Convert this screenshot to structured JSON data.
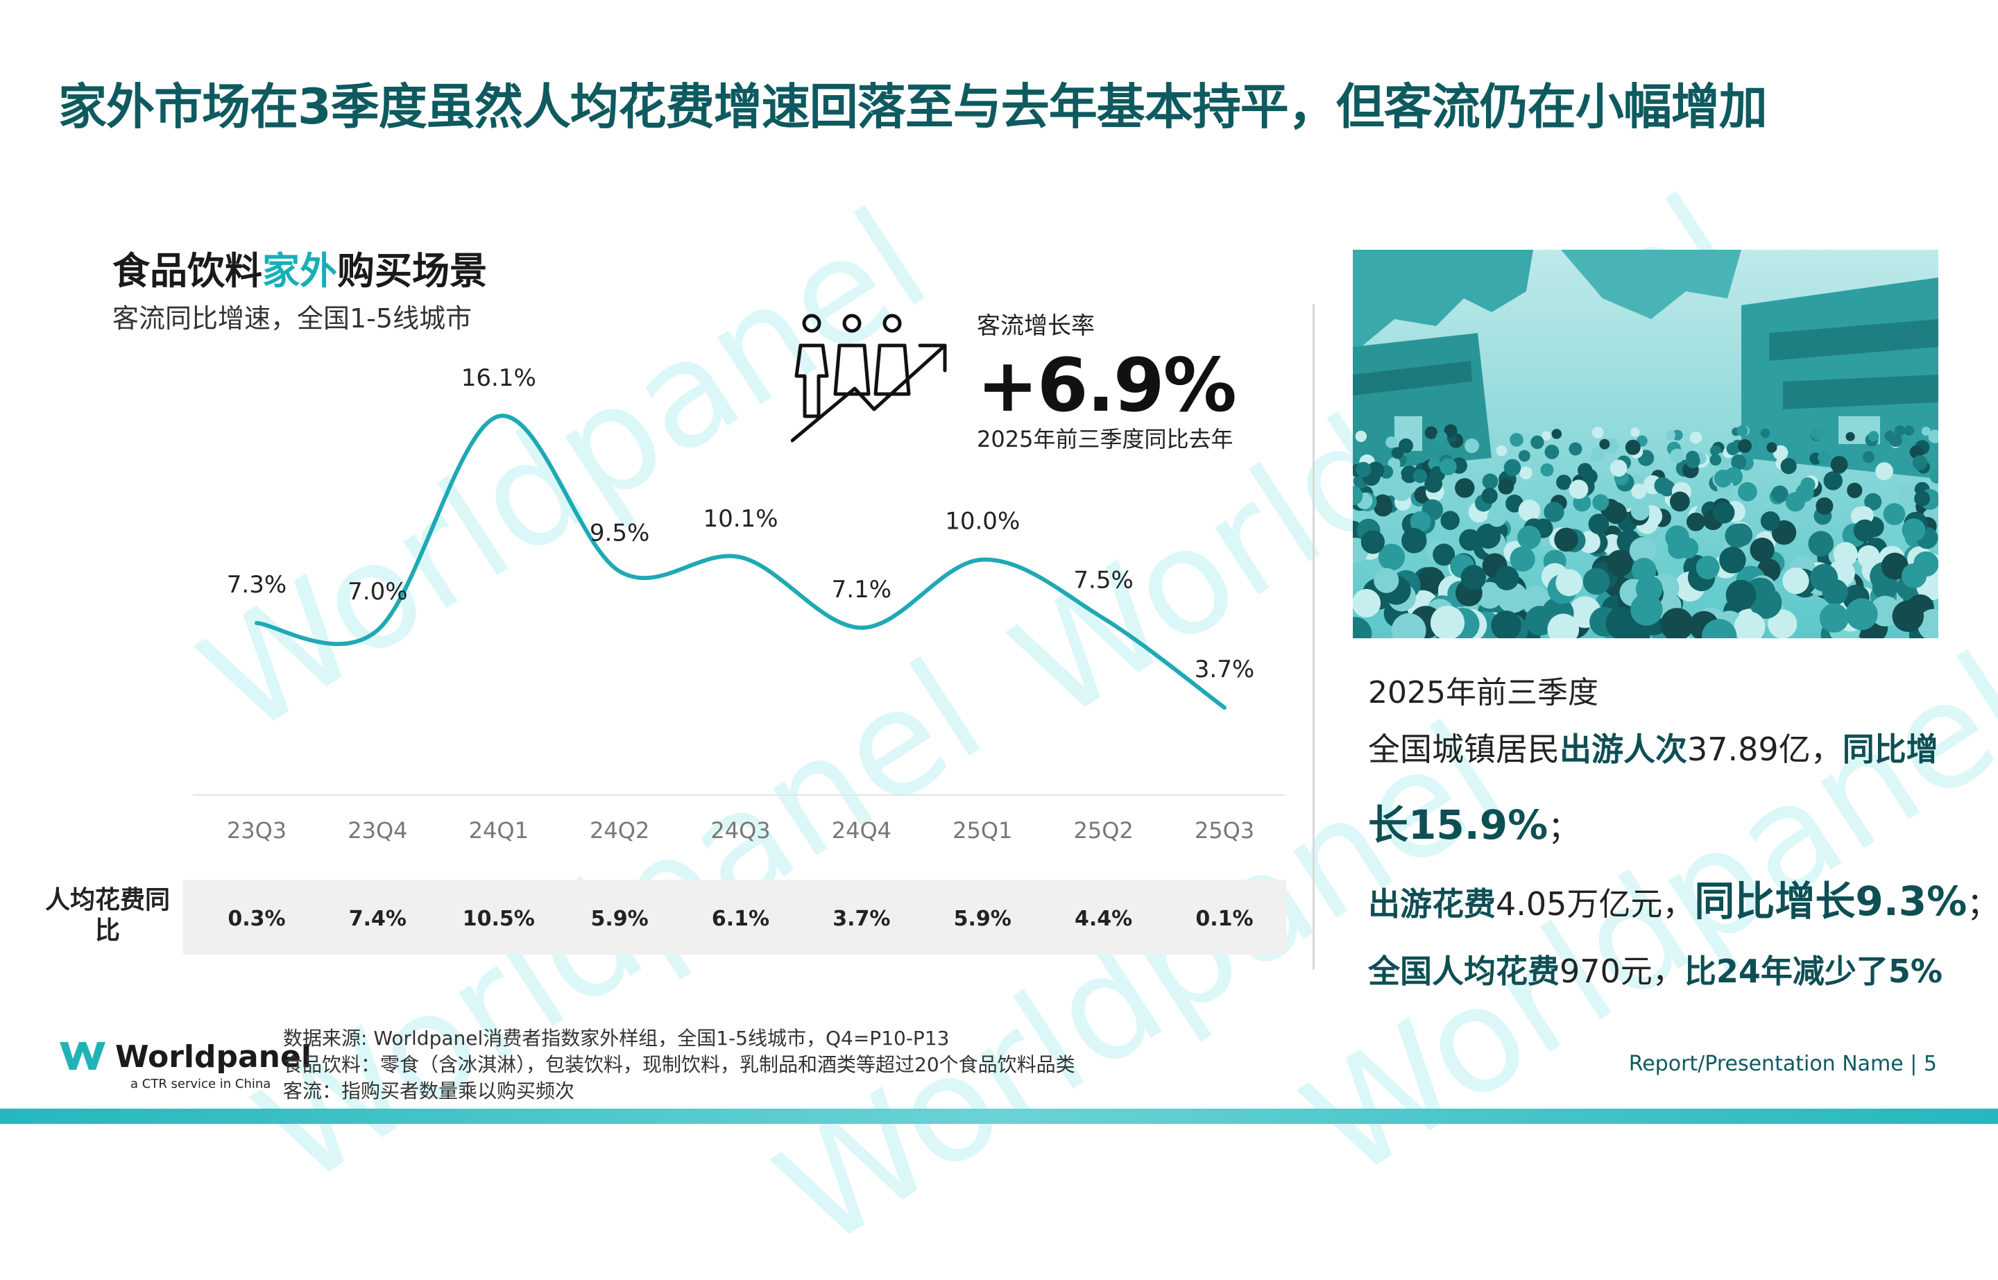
{
  "title": "家外市场在3季度虽然人均花费增速回落至与去年基本持平，但客流仍在小幅增加",
  "section": {
    "title_part1": "食品饮料",
    "title_highlight": "家外",
    "title_part2": "购买场景",
    "subtitle": "客流同比增速，全国1-5线城市"
  },
  "kpi": {
    "label": "客流增长率",
    "value": "+6.9%",
    "sub": "2025年前三季度同比去年",
    "icon": "people-growth-arrow-icon"
  },
  "chart_data": {
    "type": "line",
    "categories": [
      "23Q3",
      "23Q4",
      "24Q1",
      "24Q2",
      "24Q3",
      "24Q4",
      "25Q1",
      "25Q2",
      "25Q3"
    ],
    "series": [
      {
        "values": [
          7.3,
          7.0,
          16.1,
          9.5,
          10.1,
          7.1,
          10.0,
          7.5,
          3.7
        ],
        "labels": [
          "7.3%",
          "7.0%",
          "16.1%",
          "9.5%",
          "10.1%",
          "7.1%",
          "10.0%",
          "7.5%",
          "3.7%"
        ]
      }
    ],
    "axis_visible": false,
    "grid": false,
    "line_color": "#1fa9b4",
    "table_row": {
      "label": "人均花费同比",
      "values": [
        "0.3%",
        "7.4%",
        "10.5%",
        "5.9%",
        "6.1%",
        "3.7%",
        "5.9%",
        "4.4%",
        "0.1%"
      ]
    }
  },
  "right_panel": {
    "heading": "2025年前三季度",
    "line1_pre": "全国城镇居民",
    "line1_bold": "出游人次",
    "line1_num": "37.89亿，",
    "line1_bold2": "同比增",
    "line2_bold": "长15.9%",
    "line2_post": "；",
    "line3_bold": "出游花费",
    "line3_num": "4.05万亿元，",
    "line3_bold2": "同比增长9.3%",
    "line3_post": "；",
    "line4_bold": "全国人均花费",
    "line4_num": "970元，",
    "line4_bold2": "比24年减少了5%"
  },
  "footer": {
    "source_lines": [
      "数据来源: Worldpanel消费者指数家外样组，全国1-5线城市，Q4=P10-P13",
      "食品饮料：零食（含冰淇淋），包装饮料，现制饮料，乳制品和酒类等超过20个食品饮料品类",
      "客流：指购买者数量乘以购买频次"
    ],
    "logo_text": "Worldpanel",
    "logo_tagline": "a CTR service in China",
    "page_label": "Report/Presentation Name | 5"
  },
  "watermark": "Worldpanel",
  "colors": {
    "brand_dark": "#0e5a5f",
    "accent": "#16b0b6",
    "photo_tint": "#3bbdbf"
  }
}
